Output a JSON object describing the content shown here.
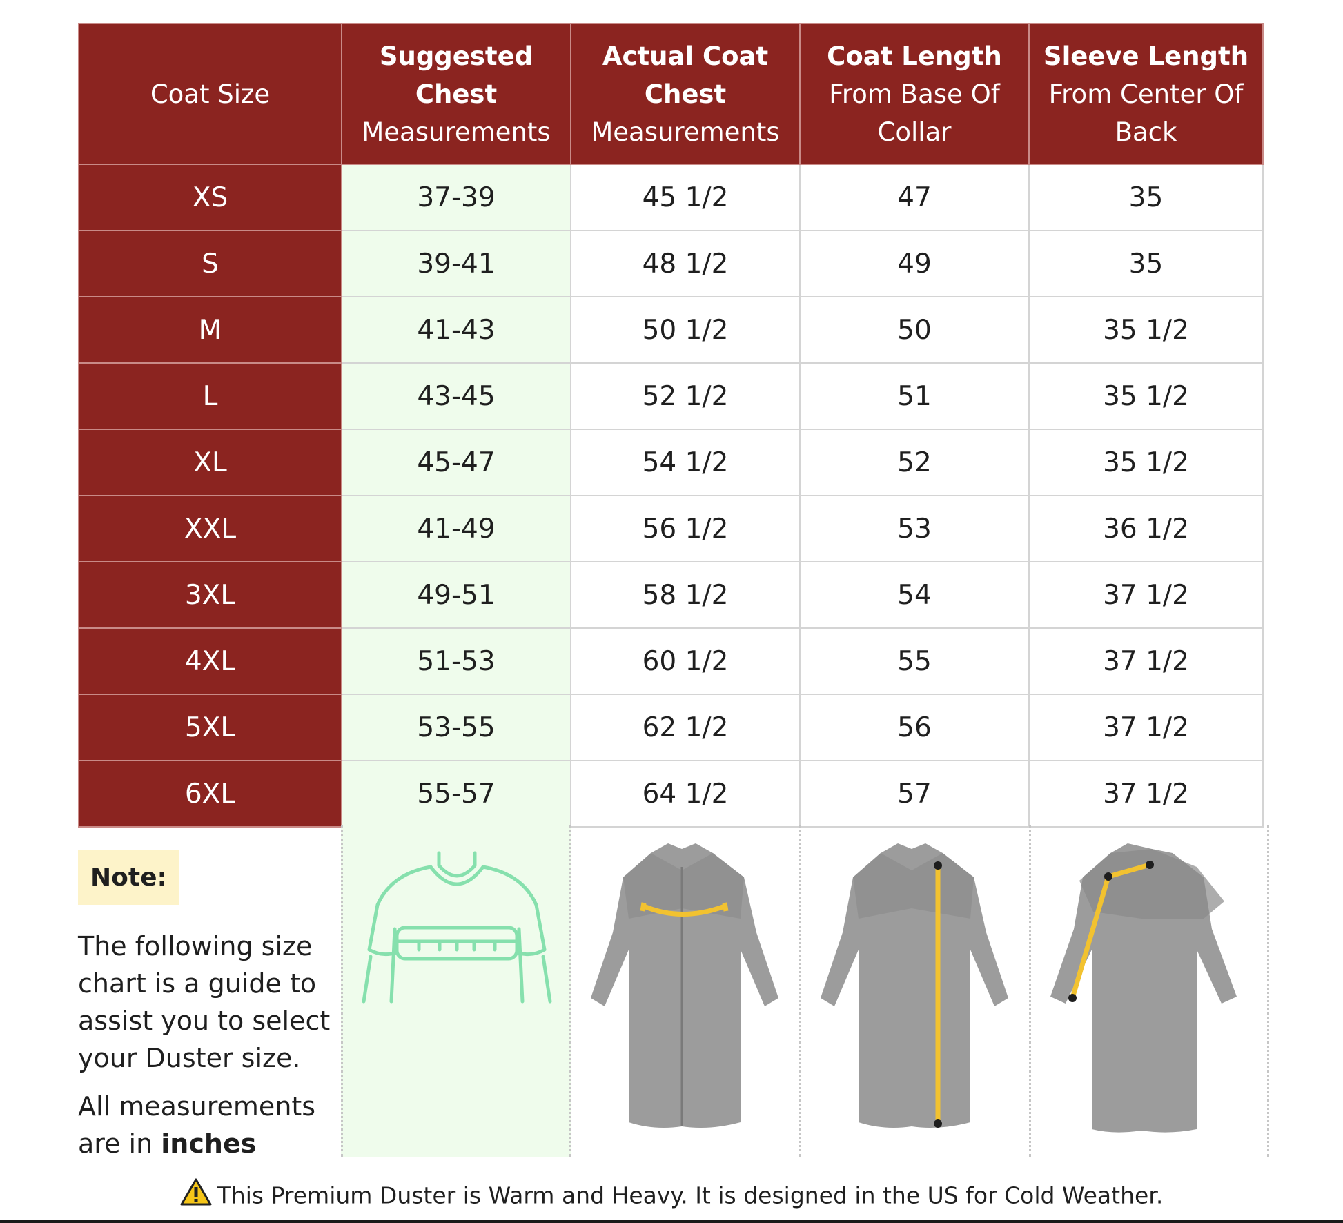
{
  "table": {
    "headers": [
      {
        "bold": "",
        "regular": "Coat Size"
      },
      {
        "bold": "Suggested Chest",
        "regular": "Measurements"
      },
      {
        "bold": "Actual Coat Chest",
        "regular": "Measurements"
      },
      {
        "bold": "Coat Length",
        "regular": "From Base Of Collar"
      },
      {
        "bold": "Sleeve Length",
        "regular": "From Center Of Back"
      }
    ],
    "rows": [
      [
        "XS",
        "37-39",
        "45 1/2",
        "47",
        "35"
      ],
      [
        "S",
        "39-41",
        "48 1/2",
        "49",
        "35"
      ],
      [
        "M",
        "41-43",
        "50 1/2",
        "50",
        "35 1/2"
      ],
      [
        "L",
        "43-45",
        "52 1/2",
        "51",
        "35 1/2"
      ],
      [
        "XL",
        "45-47",
        "54 1/2",
        "52",
        "35 1/2"
      ],
      [
        "XXL",
        "41-49",
        "56 1/2",
        "53",
        "36 1/2"
      ],
      [
        "3XL",
        "49-51",
        "58 1/2",
        "54",
        "37 1/2"
      ],
      [
        "4XL",
        "51-53",
        "60 1/2",
        "55",
        "37 1/2"
      ],
      [
        "5XL",
        "53-55",
        "62 1/2",
        "56",
        "37 1/2"
      ],
      [
        "6XL",
        "55-57",
        "64 1/2",
        "57",
        "37 1/2"
      ]
    ]
  },
  "note": {
    "badge": "Note:",
    "paragraph1": "The following size chart is a guide to assist you to select your Duster size.",
    "paragraph2_prefix": "All measurements are in",
    "paragraph2_bold": "inches"
  },
  "footer": {
    "warning_text": "This Premium Duster is Warm and Heavy. It is designed in the US for Cold Weather."
  },
  "colors": {
    "header_red": "#8b2420",
    "chest_column_green": "#effcec",
    "note_badge": "#fdf3c9",
    "measure_line": "#f2c230",
    "sketch_green": "#86e0ad",
    "coat_gray": "#9a9a9a"
  },
  "icons": [
    "warning-icon"
  ]
}
